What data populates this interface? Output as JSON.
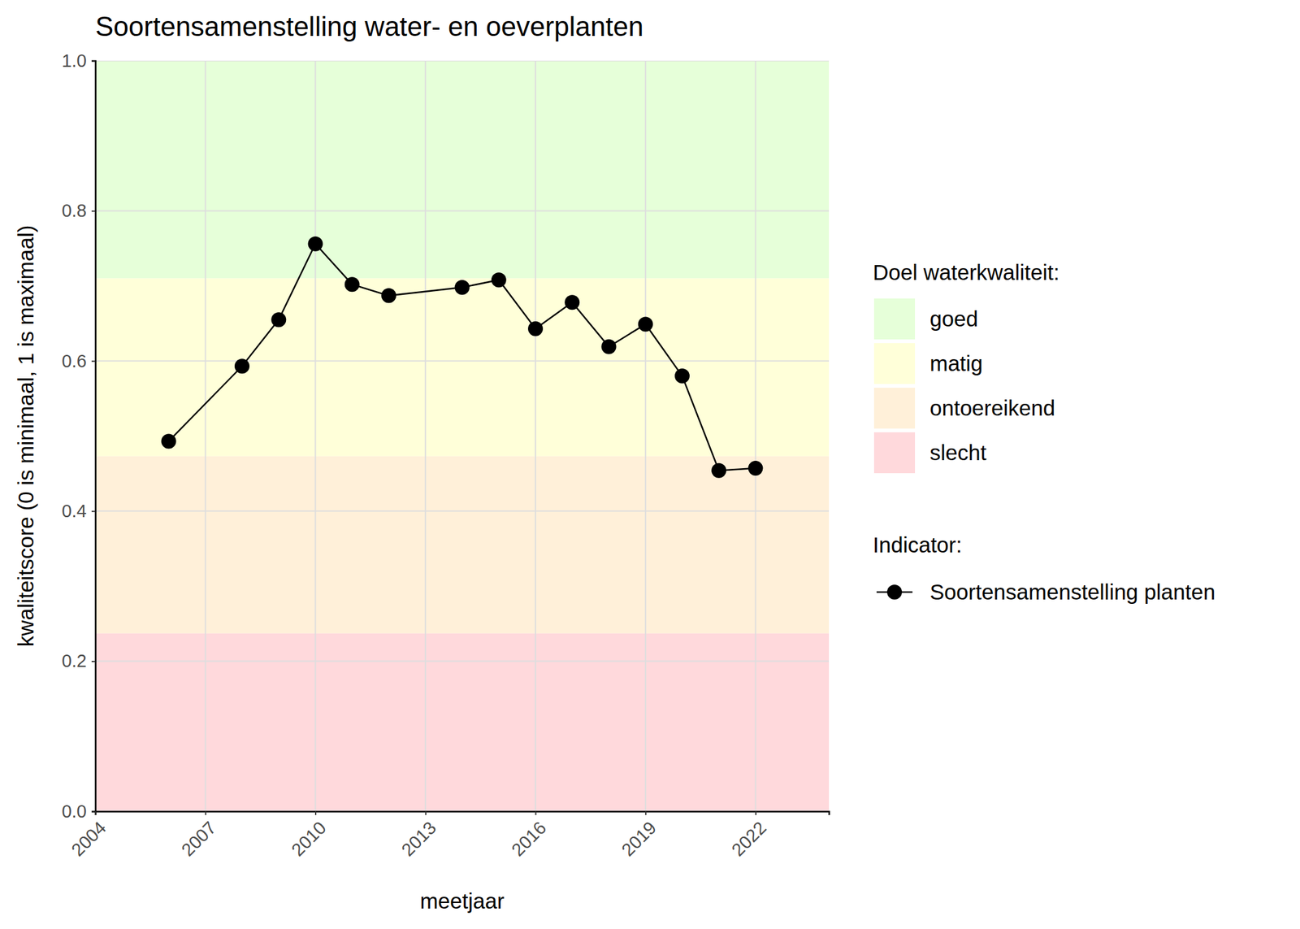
{
  "chart_data": {
    "type": "line",
    "title": "Soortensamenstelling water- en oeverplanten",
    "x_label": "meetjaar",
    "y_label": "kwaliteitscore (0 is minimaal, 1 is maximaal)",
    "x": [
      2006,
      2008,
      2009,
      2010,
      2011,
      2012,
      2014,
      2015,
      2016,
      2017,
      2018,
      2019,
      2020,
      2021,
      2022
    ],
    "series": [
      {
        "name": "Soortensamenstelling planten",
        "color": "#000000",
        "marker": "circle",
        "line_style": "solid",
        "values": [
          0.493,
          0.593,
          0.655,
          0.756,
          0.702,
          0.687,
          0.698,
          0.708,
          0.643,
          0.678,
          0.619,
          0.649,
          0.58,
          0.454,
          0.457
        ]
      }
    ],
    "xlim": [
      2004,
      2024
    ],
    "xticks": [
      2004,
      2007,
      2010,
      2013,
      2016,
      2019,
      2022
    ],
    "ylim": [
      0,
      1
    ],
    "yticks": [
      {
        "value": 0,
        "label": "0.0"
      },
      0.2,
      0.4,
      0.6,
      0.8,
      {
        "value": 1,
        "label": "1.0"
      }
    ],
    "grid": true,
    "band_legend_title": "Doel waterkwaliteit:",
    "series_legend_title": "Indicator:",
    "bands": [
      {
        "name": "goed",
        "color": "#e6ffd9",
        "from": 0.71,
        "to": 1.0
      },
      {
        "name": "matig",
        "color": "#ffffd9",
        "from": 0.473,
        "to": 0.71
      },
      {
        "name": "ontoereikend",
        "color": "#fff0d9",
        "from": 0.237,
        "to": 0.473
      },
      {
        "name": "slecht",
        "color": "#ffd9dc",
        "from": 0.0,
        "to": 0.237
      }
    ]
  }
}
